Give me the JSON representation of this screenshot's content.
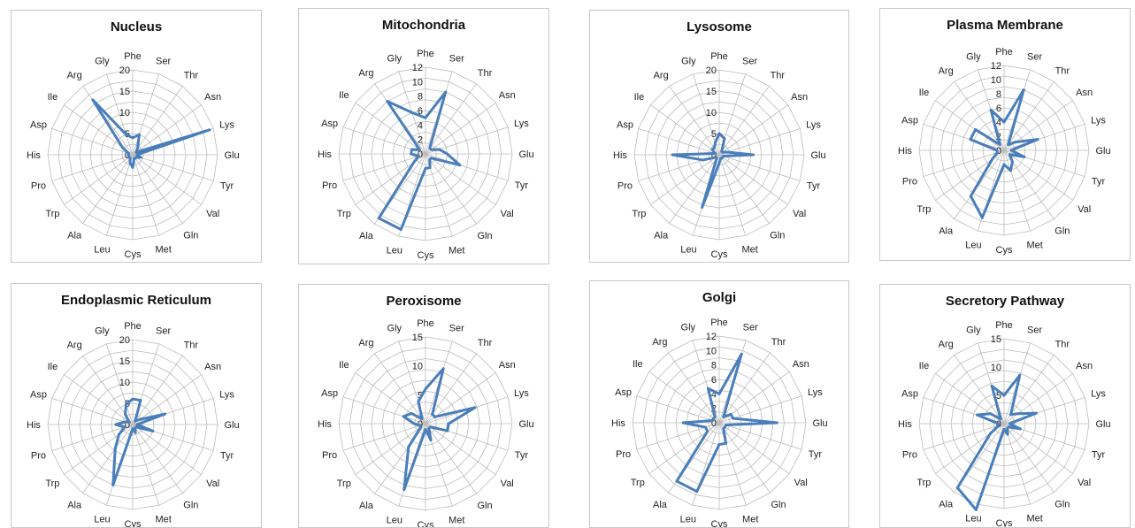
{
  "chart_data": [
    {
      "type": "radar",
      "title": "Nucleus",
      "categories": [
        "Phe",
        "Ser",
        "Thr",
        "Asn",
        "Lys",
        "Glu",
        "Tyr",
        "Val",
        "Gln",
        "Met",
        "Cys",
        "Leu",
        "Ala",
        "Trp",
        "Pro",
        "His",
        "Asp",
        "Ile",
        "Arg",
        "Gly"
      ],
      "rmax": 20,
      "ticks": [
        "0",
        "5",
        "10",
        "15",
        "20"
      ],
      "values": [
        4,
        5,
        2,
        1,
        19,
        1,
        2,
        1,
        1,
        1,
        3,
        2,
        1,
        1,
        1,
        1,
        1,
        3,
        16,
        5
      ],
      "series_color": "#4a7ebb"
    },
    {
      "type": "radar",
      "title": "Mitochondria",
      "categories": [
        "Phe",
        "Ser",
        "Thr",
        "Asn",
        "Lys",
        "Glu",
        "Tyr",
        "Val",
        "Gln",
        "Met",
        "Cys",
        "Leu",
        "Ala",
        "Trp",
        "Pro",
        "His",
        "Asp",
        "Ile",
        "Arg",
        "Gly"
      ],
      "rmax": 12,
      "ticks": [
        "0",
        "2",
        "4",
        "6",
        "8",
        "10",
        "12"
      ],
      "values": [
        5,
        9,
        1,
        1,
        2,
        3,
        5,
        1,
        1,
        2,
        2,
        11,
        11,
        2,
        1,
        2,
        2,
        1,
        9,
        6
      ],
      "series_color": "#4a7ebb"
    },
    {
      "type": "radar",
      "title": "Lysosome",
      "categories": [
        "Phe",
        "Ser",
        "Thr",
        "Asn",
        "Lys",
        "Glu",
        "Tyr",
        "Val",
        "Gln",
        "Met",
        "Cys",
        "Leu",
        "Ala",
        "Trp",
        "Pro",
        "His",
        "Asp",
        "Ile",
        "Arg",
        "Gly"
      ],
      "rmax": 20,
      "ticks": [
        "0",
        "5",
        "10",
        "15",
        "20"
      ],
      "values": [
        5,
        4,
        1,
        1,
        2,
        8,
        1,
        1,
        1,
        1,
        2,
        13,
        1,
        1,
        4,
        11,
        1,
        2,
        2,
        3
      ],
      "series_color": "#4a7ebb"
    },
    {
      "type": "radar",
      "title": "Plasma Membrane",
      "categories": [
        "Phe",
        "Ser",
        "Thr",
        "Asn",
        "Lys",
        "Glu",
        "Tyr",
        "Val",
        "Gln",
        "Met",
        "Cys",
        "Leu",
        "Ala",
        "Trp",
        "Pro",
        "His",
        "Asp",
        "Ile",
        "Arg",
        "Gly"
      ],
      "rmax": 12,
      "ticks": [
        "0",
        "2",
        "4",
        "6",
        "8",
        "10",
        "12"
      ],
      "values": [
        4,
        9,
        1,
        2,
        5,
        1,
        3,
        1,
        2,
        3,
        2,
        10,
        8,
        2,
        1,
        1,
        5,
        5,
        1,
        6
      ],
      "series_color": "#4a7ebb"
    },
    {
      "type": "radar",
      "title": "Endoplasmic Reticulum",
      "categories": [
        "Phe",
        "Ser",
        "Thr",
        "Asn",
        "Lys",
        "Glu",
        "Tyr",
        "Val",
        "Gln",
        "Met",
        "Cys",
        "Leu",
        "Ala",
        "Trp",
        "Pro",
        "His",
        "Asp",
        "Ile",
        "Arg",
        "Gly"
      ],
      "rmax": 20,
      "ticks": [
        "0",
        "5",
        "10",
        "15",
        "20"
      ],
      "values": [
        6,
        6,
        1,
        2,
        8,
        1,
        5,
        1,
        1,
        2,
        1,
        15,
        7,
        4,
        2,
        4,
        2,
        1,
        3,
        5
      ],
      "series_color": "#4a7ebb"
    },
    {
      "type": "radar",
      "title": "Peroxisome",
      "categories": [
        "Phe",
        "Ser",
        "Thr",
        "Asn",
        "Lys",
        "Glu",
        "Tyr",
        "Val",
        "Gln",
        "Met",
        "Cys",
        "Leu",
        "Ala",
        "Trp",
        "Pro",
        "His",
        "Asp",
        "Ile",
        "Arg",
        "Gly"
      ],
      "rmax": 15,
      "ticks": [
        "0",
        "5",
        "10",
        "15"
      ],
      "values": [
        6,
        10,
        2,
        2,
        9,
        4,
        4,
        1,
        1,
        3,
        1,
        12,
        5,
        1,
        1,
        2,
        4,
        3,
        1,
        4
      ],
      "series_color": "#4a7ebb"
    },
    {
      "type": "radar",
      "title": "Golgi",
      "categories": [
        "Phe",
        "Ser",
        "Thr",
        "Asn",
        "Lys",
        "Glu",
        "Tyr",
        "Val",
        "Gln",
        "Met",
        "Cys",
        "Leu",
        "Ala",
        "Trp",
        "Pro",
        "His",
        "Asp",
        "Ile",
        "Arg",
        "Gly"
      ],
      "rmax": 12,
      "ticks": [
        "0",
        "2",
        "4",
        "6",
        "8",
        "10",
        "12"
      ],
      "values": [
        4,
        10,
        1,
        2,
        2,
        8,
        1,
        1,
        1,
        3,
        3,
        10,
        10,
        2,
        2,
        5,
        1,
        1,
        1,
        5
      ],
      "series_color": "#4a7ebb"
    },
    {
      "type": "radar",
      "title": "Secretory Pathway",
      "categories": [
        "Phe",
        "Ser",
        "Thr",
        "Asn",
        "Lys",
        "Glu",
        "Tyr",
        "Val",
        "Gln",
        "Met",
        "Cys",
        "Leu",
        "Ala",
        "Trp",
        "Pro",
        "His",
        "Asp",
        "Ile",
        "Arg",
        "Gly"
      ],
      "rmax": 15,
      "ticks": [
        "0",
        "5",
        "10",
        "15"
      ],
      "values": [
        5,
        9,
        2,
        3,
        6,
        1,
        3,
        1,
        1,
        2,
        1,
        16,
        14,
        3,
        1,
        1,
        5,
        3,
        1,
        7
      ],
      "series_color": "#4a7ebb"
    }
  ]
}
